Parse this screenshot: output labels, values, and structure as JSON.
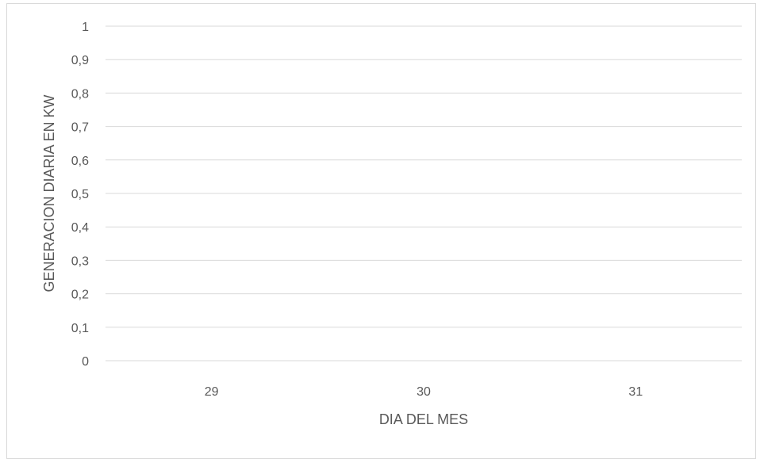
{
  "chart_data": {
    "type": "line",
    "title": "",
    "xlabel": "DIA DEL MES",
    "ylabel": "GENERACION DIARIA EN KW",
    "categories": [
      "29",
      "30",
      "31"
    ],
    "series": [],
    "y_ticks": [
      "0",
      "0,1",
      "0,2",
      "0,3",
      "0,4",
      "0,5",
      "0,6",
      "0,7",
      "0,8",
      "0,9",
      "1"
    ],
    "ylim": [
      0,
      1
    ],
    "grid": true,
    "legend": "none",
    "colors": {
      "gridline": "#d9d9d9",
      "axis": "#d9d9d9",
      "text": "#595959",
      "border": "#d9d9d9"
    }
  }
}
